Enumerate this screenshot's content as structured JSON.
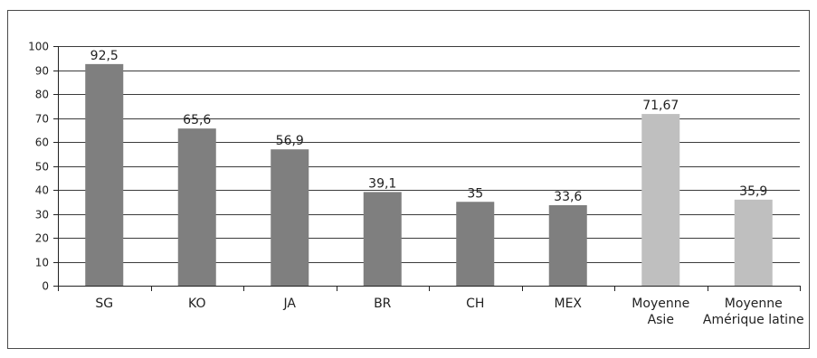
{
  "chart_data": {
    "type": "bar",
    "categories": [
      [
        "SG"
      ],
      [
        "KO"
      ],
      [
        "JA"
      ],
      [
        "BR"
      ],
      [
        "CH"
      ],
      [
        "MEX"
      ],
      [
        "Moyenne",
        "Asie"
      ],
      [
        "Moyenne",
        "Amérique latine"
      ]
    ],
    "values": [
      92.5,
      65.6,
      56.9,
      39.1,
      35,
      33.6,
      71.67,
      35.9
    ],
    "data_labels": [
      "92,5",
      "65,6",
      "56,9",
      "39,1",
      "35",
      "33,6",
      "71,67",
      "35,9"
    ],
    "bar_colors": [
      "#7f7f7f",
      "#7f7f7f",
      "#7f7f7f",
      "#7f7f7f",
      "#7f7f7f",
      "#7f7f7f",
      "#bfbfbf",
      "#bfbfbf"
    ],
    "ylim": [
      0,
      100
    ],
    "yticks": [
      0,
      10,
      20,
      30,
      40,
      50,
      60,
      70,
      80,
      90,
      100
    ],
    "grid": true,
    "gridline_color": "#3c3c3c",
    "title": "",
    "xlabel": "",
    "ylabel": ""
  }
}
